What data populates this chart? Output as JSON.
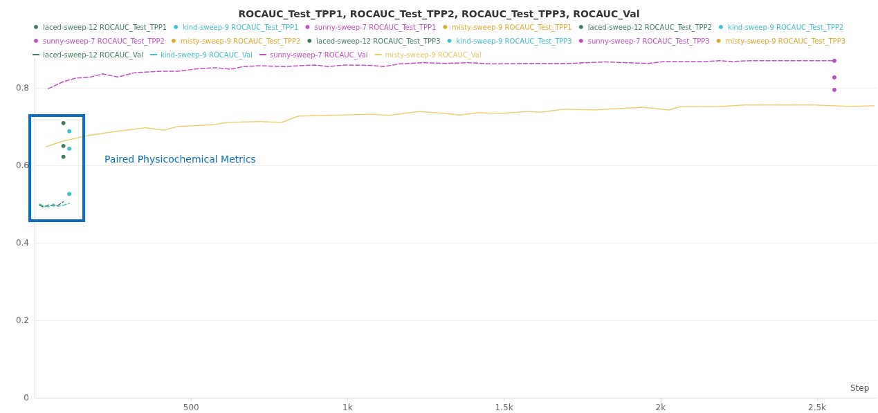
{
  "chart_data": {
    "type": "line",
    "title": "ROCAUC_Test_TPP1, ROCAUC_Test_TPP2, ROCAUC_Test_TPP3, ROCAUC_Val",
    "xlabel": "Step",
    "annotations": [
      "Paired Physicochemical Metrics"
    ],
    "xlim": [
      0,
      2690
    ],
    "xticks": [
      {
        "value": 500,
        "label": "500"
      },
      {
        "value": 1000,
        "label": "1k"
      },
      {
        "value": 1500,
        "label": "1.5k"
      },
      {
        "value": 2000,
        "label": "2k"
      },
      {
        "value": 2500,
        "label": "2.5k"
      }
    ],
    "ylim": [
      0,
      0.875
    ],
    "yticks": [
      0,
      0.2,
      0.4,
      0.6,
      0.8
    ],
    "grid": "y",
    "legend": "top",
    "series": [
      {
        "name": "laced-sweep-12 ROCAUC_Test_TPP1",
        "color": "#3f7d5c",
        "line_style": "solid",
        "marker": "circle",
        "x": [
          92
        ],
        "values": [
          0.709
        ]
      },
      {
        "name": "kind-sweep-9 ROCAUC_Test_TPP1",
        "color": "#3fbfd0",
        "line_style": "solid",
        "marker": "circle",
        "x": [
          111
        ],
        "values": [
          0.688
        ]
      },
      {
        "name": "sunny-sweep-7 ROCAUC_Test_TPP1",
        "color": "#c24fc0",
        "line_style": "solid",
        "marker": "circle",
        "x": [
          2555
        ],
        "values": [
          0.87
        ]
      },
      {
        "name": "misty-sweep-9 ROCAUC_Test_TPP1",
        "color": "#e3a92c",
        "line_style": "solid",
        "marker": "circle"
      },
      {
        "name": "laced-sweep-12 ROCAUC_Test_TPP2",
        "color": "#3f7d5c",
        "line_style": "dashed",
        "marker": "circle",
        "x": [
          92
        ],
        "values": [
          0.65
        ]
      },
      {
        "name": "kind-sweep-9 ROCAUC_Test_TPP2",
        "color": "#3fbfd0",
        "line_style": "dotted",
        "marker": "circle",
        "x": [
          111
        ],
        "values": [
          0.643
        ]
      },
      {
        "name": "sunny-sweep-7 ROCAUC_Test_TPP2",
        "color": "#c24fc0",
        "line_style": "dashed",
        "marker": "circle",
        "x": [
          2555
        ],
        "values": [
          0.827
        ]
      },
      {
        "name": "misty-sweep-9 ROCAUC_Test_TPP2",
        "color": "#e3a92c",
        "line_style": "dashed",
        "marker": "circle"
      },
      {
        "name": "laced-sweep-12 ROCAUC_Test_TPP3",
        "color": "#3f7d5c",
        "line_style": "dotted",
        "marker": "circle",
        "x": [
          92
        ],
        "values": [
          0.622
        ]
      },
      {
        "name": "kind-sweep-9 ROCAUC_Test_TPP3",
        "color": "#3fbfd0",
        "line_style": "dashed",
        "marker": "circle",
        "x": [
          111
        ],
        "values": [
          0.526
        ]
      },
      {
        "name": "sunny-sweep-7 ROCAUC_Test_TPP3",
        "color": "#c24fc0",
        "line_style": "dotted",
        "marker": "circle",
        "x": [
          2555
        ],
        "values": [
          0.795
        ]
      },
      {
        "name": "misty-sweep-9 ROCAUC_Test_TPP3",
        "color": "#e3a92c",
        "line_style": "solid",
        "marker": "circle"
      },
      {
        "name": "laced-sweep-12 ROCAUC_Val",
        "color": "#3f7d5c",
        "line_style": "dashed",
        "marker": "none",
        "x": [
          15,
          30,
          45,
          60,
          75,
          92
        ],
        "values": [
          0.497,
          0.492,
          0.498,
          0.495,
          0.497,
          0.506
        ]
      },
      {
        "name": "kind-sweep-9 ROCAUC_Val",
        "color": "#3fbfd0",
        "line_style": "dashed",
        "marker": "none",
        "x": [
          15,
          30,
          45,
          60,
          75,
          92,
          111
        ],
        "values": [
          0.5,
          0.495,
          0.493,
          0.5,
          0.494,
          0.497,
          0.502
        ]
      },
      {
        "name": "sunny-sweep-7 ROCAUC_Val",
        "color": "#c24fc0",
        "line_style": "dashed",
        "marker": "none",
        "x": [
          44,
          92,
          131,
          179,
          218,
          266,
          319,
          406,
          459,
          528,
          581,
          624,
          668,
          721,
          799,
          895,
          939,
          991,
          1070,
          1114,
          1166,
          1245,
          1314,
          1384,
          1454,
          1576,
          1707,
          1821,
          1882,
          1961,
          2013,
          2144,
          2188,
          2231,
          2284,
          2555
        ],
        "values": [
          0.798,
          0.816,
          0.825,
          0.828,
          0.836,
          0.828,
          0.839,
          0.843,
          0.843,
          0.85,
          0.852,
          0.848,
          0.855,
          0.857,
          0.855,
          0.859,
          0.855,
          0.859,
          0.858,
          0.855,
          0.862,
          0.865,
          0.863,
          0.865,
          0.862,
          0.863,
          0.863,
          0.867,
          0.865,
          0.863,
          0.868,
          0.868,
          0.87,
          0.868,
          0.87,
          0.87
        ]
      },
      {
        "name": "misty-sweep-9 ROCAUC_Val",
        "color": "#edc85e",
        "line_style": "dotted",
        "marker": "none",
        "x": [
          37,
          92,
          172,
          245,
          354,
          413,
          456,
          572,
          616,
          718,
          790,
          843,
          1079,
          1131,
          1227,
          1279,
          1314,
          1358,
          1419,
          1489,
          1576,
          1616,
          1690,
          1786,
          1943,
          2026,
          2066,
          2188,
          2275,
          2485,
          2607,
          2683
        ],
        "values": [
          0.648,
          0.663,
          0.677,
          0.686,
          0.697,
          0.691,
          0.7,
          0.705,
          0.711,
          0.713,
          0.711,
          0.727,
          0.732,
          0.729,
          0.739,
          0.736,
          0.734,
          0.73,
          0.736,
          0.734,
          0.739,
          0.737,
          0.745,
          0.743,
          0.75,
          0.743,
          0.752,
          0.752,
          0.756,
          0.756,
          0.752,
          0.754
        ]
      }
    ]
  }
}
